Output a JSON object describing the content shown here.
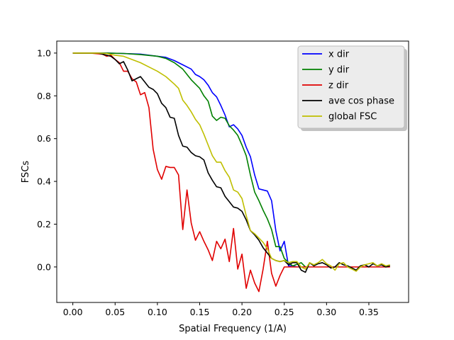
{
  "chart_data": {
    "type": "line",
    "xlabel": "Spatial Frequency (1/A)",
    "ylabel": "FSCs",
    "xlim": [
      -0.019,
      0.397
    ],
    "ylim": [
      -0.166,
      1.056
    ],
    "xticks": [
      0.0,
      0.05,
      0.1,
      0.15,
      0.2,
      0.25,
      0.3,
      0.35
    ],
    "xtick_labels": [
      "0.00",
      "0.05",
      "0.10",
      "0.15",
      "0.20",
      "0.25",
      "0.30",
      "0.35"
    ],
    "yticks": [
      0.0,
      0.2,
      0.4,
      0.6,
      0.8,
      1.0
    ],
    "ytick_labels": [
      "0.0",
      "0.2",
      "0.4",
      "0.6",
      "0.8",
      "1.0"
    ],
    "grid": false,
    "legend_position": "top-right",
    "series": [
      {
        "name": "x dir",
        "color": "#0000ff",
        "points": [
          [
            0.0,
            1.0
          ],
          [
            0.02,
            1.0
          ],
          [
            0.04,
            1.0
          ],
          [
            0.06,
            0.998
          ],
          [
            0.08,
            0.995
          ],
          [
            0.1,
            0.985
          ],
          [
            0.11,
            0.98
          ],
          [
            0.12,
            0.965
          ],
          [
            0.13,
            0.945
          ],
          [
            0.14,
            0.925
          ],
          [
            0.145,
            0.9
          ],
          [
            0.15,
            0.89
          ],
          [
            0.155,
            0.875
          ],
          [
            0.16,
            0.85
          ],
          [
            0.165,
            0.815
          ],
          [
            0.17,
            0.795
          ],
          [
            0.175,
            0.755
          ],
          [
            0.18,
            0.71
          ],
          [
            0.185,
            0.655
          ],
          [
            0.19,
            0.665
          ],
          [
            0.195,
            0.645
          ],
          [
            0.2,
            0.615
          ],
          [
            0.205,
            0.56
          ],
          [
            0.21,
            0.515
          ],
          [
            0.215,
            0.43
          ],
          [
            0.22,
            0.365
          ],
          [
            0.225,
            0.36
          ],
          [
            0.23,
            0.355
          ],
          [
            0.235,
            0.31
          ],
          [
            0.24,
            0.17
          ],
          [
            0.245,
            0.075
          ],
          [
            0.25,
            0.12
          ],
          [
            0.255,
            0.005
          ],
          [
            0.26,
            0.005
          ],
          [
            0.265,
            0.0
          ]
        ]
      },
      {
        "name": "y dir",
        "color": "#008000",
        "points": [
          [
            0.0,
            1.0
          ],
          [
            0.02,
            1.0
          ],
          [
            0.04,
            1.0
          ],
          [
            0.06,
            0.998
          ],
          [
            0.08,
            0.993
          ],
          [
            0.1,
            0.985
          ],
          [
            0.11,
            0.975
          ],
          [
            0.12,
            0.955
          ],
          [
            0.13,
            0.925
          ],
          [
            0.135,
            0.9
          ],
          [
            0.14,
            0.875
          ],
          [
            0.145,
            0.855
          ],
          [
            0.15,
            0.835
          ],
          [
            0.155,
            0.8
          ],
          [
            0.16,
            0.775
          ],
          [
            0.165,
            0.705
          ],
          [
            0.17,
            0.685
          ],
          [
            0.175,
            0.7
          ],
          [
            0.18,
            0.695
          ],
          [
            0.185,
            0.66
          ],
          [
            0.19,
            0.64
          ],
          [
            0.195,
            0.615
          ],
          [
            0.2,
            0.57
          ],
          [
            0.205,
            0.52
          ],
          [
            0.21,
            0.43
          ],
          [
            0.215,
            0.35
          ],
          [
            0.22,
            0.31
          ],
          [
            0.225,
            0.265
          ],
          [
            0.23,
            0.225
          ],
          [
            0.235,
            0.175
          ],
          [
            0.24,
            0.095
          ],
          [
            0.245,
            0.095
          ],
          [
            0.25,
            0.04
          ],
          [
            0.255,
            0.02
          ],
          [
            0.26,
            0.005
          ],
          [
            0.27,
            0.02
          ],
          [
            0.275,
            0.0
          ]
        ]
      },
      {
        "name": "z dir",
        "color": "#e00000",
        "points": [
          [
            0.0,
            1.0
          ],
          [
            0.02,
            1.0
          ],
          [
            0.035,
            0.995
          ],
          [
            0.04,
            0.985
          ],
          [
            0.045,
            0.99
          ],
          [
            0.05,
            0.97
          ],
          [
            0.055,
            0.955
          ],
          [
            0.06,
            0.915
          ],
          [
            0.065,
            0.915
          ],
          [
            0.07,
            0.88
          ],
          [
            0.075,
            0.865
          ],
          [
            0.08,
            0.805
          ],
          [
            0.085,
            0.815
          ],
          [
            0.09,
            0.745
          ],
          [
            0.095,
            0.55
          ],
          [
            0.1,
            0.455
          ],
          [
            0.105,
            0.41
          ],
          [
            0.11,
            0.47
          ],
          [
            0.115,
            0.465
          ],
          [
            0.12,
            0.465
          ],
          [
            0.125,
            0.43
          ],
          [
            0.13,
            0.175
          ],
          [
            0.135,
            0.36
          ],
          [
            0.14,
            0.205
          ],
          [
            0.145,
            0.125
          ],
          [
            0.15,
            0.165
          ],
          [
            0.155,
            0.12
          ],
          [
            0.16,
            0.08
          ],
          [
            0.165,
            0.03
          ],
          [
            0.17,
            0.12
          ],
          [
            0.175,
            0.085
          ],
          [
            0.18,
            0.13
          ],
          [
            0.185,
            0.025
          ],
          [
            0.19,
            0.18
          ],
          [
            0.195,
            -0.01
          ],
          [
            0.2,
            0.06
          ],
          [
            0.205,
            -0.1
          ],
          [
            0.21,
            -0.015
          ],
          [
            0.215,
            -0.075
          ],
          [
            0.22,
            -0.115
          ],
          [
            0.225,
            -0.01
          ],
          [
            0.23,
            0.12
          ],
          [
            0.235,
            -0.03
          ],
          [
            0.24,
            -0.09
          ],
          [
            0.245,
            -0.04
          ],
          [
            0.25,
            0.0
          ],
          [
            0.26,
            0.0
          ],
          [
            0.27,
            0.0
          ],
          [
            0.28,
            0.0
          ],
          [
            0.29,
            0.0
          ],
          [
            0.3,
            0.0
          ],
          [
            0.31,
            0.0
          ],
          [
            0.32,
            0.0
          ],
          [
            0.33,
            0.0
          ],
          [
            0.34,
            0.0
          ],
          [
            0.35,
            0.0
          ],
          [
            0.36,
            0.0
          ],
          [
            0.37,
            0.0
          ],
          [
            0.375,
            0.0
          ]
        ]
      },
      {
        "name": "ave cos phase",
        "color": "#000000",
        "points": [
          [
            0.0,
            1.0
          ],
          [
            0.03,
            1.0
          ],
          [
            0.035,
            0.995
          ],
          [
            0.045,
            0.985
          ],
          [
            0.05,
            0.97
          ],
          [
            0.055,
            0.95
          ],
          [
            0.06,
            0.96
          ],
          [
            0.065,
            0.92
          ],
          [
            0.07,
            0.87
          ],
          [
            0.075,
            0.88
          ],
          [
            0.08,
            0.89
          ],
          [
            0.085,
            0.865
          ],
          [
            0.09,
            0.84
          ],
          [
            0.095,
            0.83
          ],
          [
            0.1,
            0.81
          ],
          [
            0.105,
            0.765
          ],
          [
            0.11,
            0.745
          ],
          [
            0.115,
            0.7
          ],
          [
            0.12,
            0.695
          ],
          [
            0.125,
            0.615
          ],
          [
            0.13,
            0.565
          ],
          [
            0.135,
            0.56
          ],
          [
            0.14,
            0.535
          ],
          [
            0.145,
            0.52
          ],
          [
            0.15,
            0.515
          ],
          [
            0.155,
            0.5
          ],
          [
            0.16,
            0.44
          ],
          [
            0.165,
            0.405
          ],
          [
            0.17,
            0.375
          ],
          [
            0.175,
            0.37
          ],
          [
            0.18,
            0.33
          ],
          [
            0.185,
            0.305
          ],
          [
            0.19,
            0.28
          ],
          [
            0.195,
            0.275
          ],
          [
            0.2,
            0.26
          ],
          [
            0.205,
            0.22
          ],
          [
            0.21,
            0.17
          ],
          [
            0.215,
            0.15
          ],
          [
            0.22,
            0.125
          ],
          [
            0.225,
            0.09
          ],
          [
            0.23,
            0.065
          ],
          [
            0.235,
            0.04
          ],
          [
            0.24,
            0.03
          ],
          [
            0.245,
            0.025
          ],
          [
            0.25,
            0.03
          ],
          [
            0.255,
            0.01
          ],
          [
            0.26,
            0.02
          ],
          [
            0.265,
            0.02
          ],
          [
            0.27,
            -0.015
          ],
          [
            0.275,
            -0.025
          ],
          [
            0.28,
            0.02
          ],
          [
            0.285,
            0.005
          ],
          [
            0.29,
            0.015
          ],
          [
            0.295,
            0.02
          ],
          [
            0.3,
            0.01
          ],
          [
            0.305,
            -0.005
          ],
          [
            0.31,
            0.0
          ],
          [
            0.315,
            0.02
          ],
          [
            0.32,
            0.01
          ],
          [
            0.325,
            0.005
          ],
          [
            0.33,
            -0.005
          ],
          [
            0.335,
            -0.015
          ],
          [
            0.34,
            0.005
          ],
          [
            0.345,
            0.01
          ],
          [
            0.35,
            0.0
          ],
          [
            0.355,
            0.015
          ],
          [
            0.36,
            0.005
          ],
          [
            0.365,
            0.01
          ],
          [
            0.37,
            0.0
          ],
          [
            0.375,
            0.005
          ]
        ]
      },
      {
        "name": "global FSC",
        "color": "#bfbf00",
        "points": [
          [
            0.0,
            1.0
          ],
          [
            0.03,
            1.0
          ],
          [
            0.04,
            0.998
          ],
          [
            0.05,
            0.99
          ],
          [
            0.06,
            0.985
          ],
          [
            0.07,
            0.97
          ],
          [
            0.08,
            0.955
          ],
          [
            0.09,
            0.935
          ],
          [
            0.1,
            0.915
          ],
          [
            0.11,
            0.89
          ],
          [
            0.12,
            0.855
          ],
          [
            0.125,
            0.835
          ],
          [
            0.13,
            0.78
          ],
          [
            0.135,
            0.755
          ],
          [
            0.14,
            0.725
          ],
          [
            0.145,
            0.69
          ],
          [
            0.15,
            0.665
          ],
          [
            0.155,
            0.62
          ],
          [
            0.16,
            0.57
          ],
          [
            0.165,
            0.52
          ],
          [
            0.17,
            0.49
          ],
          [
            0.175,
            0.49
          ],
          [
            0.18,
            0.45
          ],
          [
            0.185,
            0.42
          ],
          [
            0.19,
            0.36
          ],
          [
            0.195,
            0.35
          ],
          [
            0.2,
            0.32
          ],
          [
            0.205,
            0.24
          ],
          [
            0.21,
            0.17
          ],
          [
            0.215,
            0.155
          ],
          [
            0.22,
            0.135
          ],
          [
            0.225,
            0.115
          ],
          [
            0.23,
            0.085
          ],
          [
            0.235,
            0.04
          ],
          [
            0.24,
            0.03
          ],
          [
            0.245,
            0.025
          ],
          [
            0.25,
            0.03
          ],
          [
            0.255,
            0.02
          ],
          [
            0.26,
            0.025
          ],
          [
            0.265,
            0.025
          ],
          [
            0.27,
            0.0
          ],
          [
            0.275,
            -0.01
          ],
          [
            0.28,
            0.02
          ],
          [
            0.285,
            0.01
          ],
          [
            0.29,
            0.02
          ],
          [
            0.295,
            0.035
          ],
          [
            0.3,
            0.015
          ],
          [
            0.305,
            0.005
          ],
          [
            0.31,
            -0.015
          ],
          [
            0.315,
            0.015
          ],
          [
            0.32,
            0.02
          ],
          [
            0.325,
            0.0
          ],
          [
            0.33,
            -0.01
          ],
          [
            0.335,
            -0.02
          ],
          [
            0.34,
            0.0
          ],
          [
            0.345,
            0.01
          ],
          [
            0.35,
            0.015
          ],
          [
            0.355,
            0.02
          ],
          [
            0.36,
            0.005
          ],
          [
            0.365,
            0.015
          ],
          [
            0.37,
            0.005
          ],
          [
            0.375,
            0.01
          ]
        ]
      }
    ]
  }
}
